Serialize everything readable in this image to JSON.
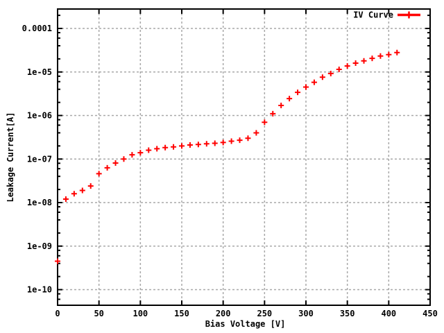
{
  "figure": {
    "background": "#ffffff",
    "border_color": "#000000",
    "grid_color": "#a8a8a8",
    "series_color": "#ff0000",
    "text_color": "#000000"
  },
  "legend": {
    "label": "IV Curve"
  },
  "chart_data": {
    "type": "scatter",
    "title": "",
    "xlabel": "Bias Voltage [V]",
    "ylabel": "Leakage Current[A]",
    "x_range": [
      0,
      450
    ],
    "y_scale": "log",
    "y_range": [
      4.4e-11,
      0.00026
    ],
    "grid": true,
    "legend_position": "top-right-inside",
    "marker": "plus",
    "xticks": [
      0,
      50,
      100,
      150,
      200,
      250,
      300,
      350,
      400,
      450
    ],
    "xtick_labels": [
      "0",
      "50",
      "100",
      "150",
      "200",
      "250",
      "300",
      "350",
      "400",
      "450"
    ],
    "ytick_values": [
      0.0001,
      1e-05,
      1e-06,
      1e-07,
      1e-08,
      1e-09,
      1e-10
    ],
    "ytick_labels": [
      "0.0001",
      "1e-05",
      "1e-06",
      "1e-07",
      "1e-08",
      "1e-09",
      "1e-10"
    ],
    "series": [
      {
        "name": "IV Curve",
        "x": [
          0,
          10,
          20,
          30,
          40,
          50,
          60,
          70,
          80,
          90,
          100,
          110,
          120,
          130,
          140,
          150,
          160,
          170,
          180,
          190,
          200,
          210,
          220,
          230,
          240,
          250,
          260,
          270,
          280,
          290,
          300,
          310,
          320,
          330,
          340,
          350,
          360,
          370,
          380,
          390,
          400,
          410
        ],
        "y": [
          4.5e-10,
          1.2e-08,
          1.6e-08,
          1.9e-08,
          2.4e-08,
          4.6e-08,
          6.3e-08,
          8.1e-08,
          1e-07,
          1.25e-07,
          1.4e-07,
          1.6e-07,
          1.73e-07,
          1.83e-07,
          1.9e-07,
          2e-07,
          2.1e-07,
          2.16e-07,
          2.24e-07,
          2.3e-07,
          2.4e-07,
          2.57e-07,
          2.7e-07,
          3e-07,
          4e-07,
          7e-07,
          1.1e-06,
          1.7e-06,
          2.45e-06,
          3.4e-06,
          4.5e-06,
          5.8e-06,
          7.6e-06,
          9.2e-06,
          1.15e-05,
          1.37e-05,
          1.6e-05,
          1.8e-05,
          2.05e-05,
          2.33e-05,
          2.5e-05,
          2.8e-05
        ]
      }
    ]
  }
}
